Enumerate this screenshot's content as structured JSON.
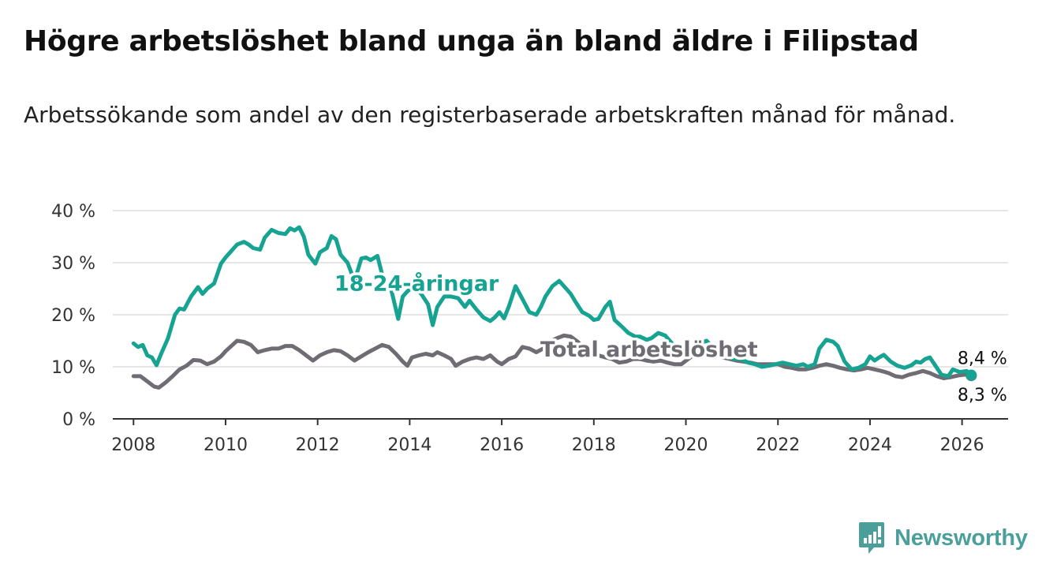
{
  "title": "Högre arbetslöshet bland unga än bland äldre i Filipstad",
  "subtitle": "Arbetssökande som andel av den registerbaserade arbetskraften månad för månad.",
  "brand": {
    "name": "Newsworthy",
    "icon": "chart-logo-icon",
    "color": "#4a9f9a"
  },
  "colors": {
    "youth": "#17a392",
    "total": "#6f6c73",
    "grid": "#dddddd",
    "axis": "#333333"
  },
  "chart_data": {
    "type": "line",
    "title": "Högre arbetslöshet bland unga än bland äldre i Filipstad",
    "xlabel": "",
    "ylabel": "",
    "xlim": [
      2007.55,
      2027.0
    ],
    "ylim": [
      0,
      40
    ],
    "yticks": [
      0,
      10,
      20,
      30,
      40
    ],
    "ytick_labels": [
      "0 %",
      "10 %",
      "20 %",
      "30 %",
      "40 %"
    ],
    "xticks": [
      2008,
      2010,
      2012,
      2014,
      2016,
      2018,
      2020,
      2022,
      2024,
      2026
    ],
    "xtick_labels": [
      "2008",
      "2010",
      "2012",
      "2014",
      "2016",
      "2018",
      "2020",
      "2022",
      "2024",
      "2026"
    ],
    "grid": true,
    "series": [
      {
        "name": "18-24-åringar",
        "color": "#17a392",
        "end_label": "8,4 %",
        "points": [
          [
            2008.0,
            14.5
          ],
          [
            2008.1,
            13.8
          ],
          [
            2008.2,
            14.2
          ],
          [
            2008.3,
            12.2
          ],
          [
            2008.4,
            11.8
          ],
          [
            2008.5,
            10.3
          ],
          [
            2008.6,
            12.5
          ],
          [
            2008.75,
            15.5
          ],
          [
            2008.9,
            20.0
          ],
          [
            2009.0,
            21.2
          ],
          [
            2009.1,
            21.0
          ],
          [
            2009.25,
            23.5
          ],
          [
            2009.4,
            25.3
          ],
          [
            2009.5,
            24.0
          ],
          [
            2009.6,
            25.0
          ],
          [
            2009.75,
            26.0
          ],
          [
            2009.9,
            29.8
          ],
          [
            2010.0,
            31.0
          ],
          [
            2010.1,
            32.0
          ],
          [
            2010.25,
            33.5
          ],
          [
            2010.4,
            34.0
          ],
          [
            2010.5,
            33.5
          ],
          [
            2010.6,
            32.8
          ],
          [
            2010.75,
            32.5
          ],
          [
            2010.85,
            34.8
          ],
          [
            2011.0,
            36.3
          ],
          [
            2011.15,
            35.7
          ],
          [
            2011.3,
            35.5
          ],
          [
            2011.4,
            36.6
          ],
          [
            2011.5,
            36.2
          ],
          [
            2011.6,
            36.8
          ],
          [
            2011.7,
            35.0
          ],
          [
            2011.8,
            31.5
          ],
          [
            2011.95,
            29.8
          ],
          [
            2012.05,
            32.0
          ],
          [
            2012.2,
            32.8
          ],
          [
            2012.3,
            35.1
          ],
          [
            2012.4,
            34.5
          ],
          [
            2012.5,
            31.5
          ],
          [
            2012.65,
            30.0
          ],
          [
            2012.8,
            26.5
          ],
          [
            2012.95,
            30.8
          ],
          [
            2013.05,
            31.0
          ],
          [
            2013.15,
            30.5
          ],
          [
            2013.3,
            31.3
          ],
          [
            2013.45,
            26.0
          ],
          [
            2013.6,
            24.8
          ],
          [
            2013.75,
            19.2
          ],
          [
            2013.85,
            23.5
          ],
          [
            2013.95,
            24.5
          ],
          [
            2014.1,
            25.5
          ],
          [
            2014.25,
            24.0
          ],
          [
            2014.4,
            22.0
          ],
          [
            2014.5,
            18.0
          ],
          [
            2014.6,
            21.5
          ],
          [
            2014.75,
            23.5
          ],
          [
            2014.9,
            23.5
          ],
          [
            2015.05,
            23.2
          ],
          [
            2015.2,
            21.5
          ],
          [
            2015.3,
            22.7
          ],
          [
            2015.45,
            21.0
          ],
          [
            2015.6,
            19.5
          ],
          [
            2015.75,
            18.8
          ],
          [
            2015.85,
            19.5
          ],
          [
            2015.95,
            20.5
          ],
          [
            2016.05,
            19.3
          ],
          [
            2016.15,
            21.5
          ],
          [
            2016.3,
            25.5
          ],
          [
            2016.45,
            23.0
          ],
          [
            2016.6,
            20.5
          ],
          [
            2016.75,
            20.0
          ],
          [
            2016.85,
            21.5
          ],
          [
            2016.95,
            23.5
          ],
          [
            2017.1,
            25.5
          ],
          [
            2017.25,
            26.5
          ],
          [
            2017.4,
            25.0
          ],
          [
            2017.5,
            24.0
          ],
          [
            2017.6,
            22.5
          ],
          [
            2017.75,
            20.5
          ],
          [
            2017.9,
            19.8
          ],
          [
            2018.0,
            19.0
          ],
          [
            2018.1,
            19.2
          ],
          [
            2018.25,
            21.5
          ],
          [
            2018.35,
            22.5
          ],
          [
            2018.45,
            19.0
          ],
          [
            2018.6,
            17.8
          ],
          [
            2018.75,
            16.5
          ],
          [
            2018.9,
            15.8
          ],
          [
            2019.0,
            15.8
          ],
          [
            2019.15,
            15.2
          ],
          [
            2019.25,
            15.5
          ],
          [
            2019.4,
            16.5
          ],
          [
            2019.55,
            16.0
          ],
          [
            2019.7,
            14.5
          ],
          [
            2019.85,
            12.5
          ],
          [
            2020.0,
            12.0
          ],
          [
            2020.15,
            13.0
          ],
          [
            2020.3,
            14.5
          ],
          [
            2020.45,
            15.0
          ],
          [
            2020.6,
            13.5
          ],
          [
            2020.75,
            12.5
          ],
          [
            2020.9,
            12.0
          ],
          [
            2021.05,
            11.5
          ],
          [
            2021.2,
            11.5
          ],
          [
            2021.35,
            10.8
          ],
          [
            2021.5,
            10.5
          ],
          [
            2021.65,
            10.0
          ],
          [
            2021.8,
            10.2
          ],
          [
            2021.95,
            10.5
          ],
          [
            2022.1,
            10.8
          ],
          [
            2022.25,
            10.5
          ],
          [
            2022.4,
            10.2
          ],
          [
            2022.55,
            10.5
          ],
          [
            2022.65,
            10.0
          ],
          [
            2022.8,
            10.5
          ],
          [
            2022.9,
            13.5
          ],
          [
            2023.05,
            15.2
          ],
          [
            2023.2,
            14.8
          ],
          [
            2023.3,
            14.0
          ],
          [
            2023.45,
            11.0
          ],
          [
            2023.6,
            9.5
          ],
          [
            2023.75,
            9.8
          ],
          [
            2023.9,
            10.5
          ],
          [
            2024.0,
            12.0
          ],
          [
            2024.1,
            11.2
          ],
          [
            2024.2,
            11.8
          ],
          [
            2024.3,
            12.3
          ],
          [
            2024.45,
            11.0
          ],
          [
            2024.6,
            10.2
          ],
          [
            2024.75,
            9.8
          ],
          [
            2024.9,
            10.3
          ],
          [
            2025.0,
            11.0
          ],
          [
            2025.1,
            10.8
          ],
          [
            2025.2,
            11.5
          ],
          [
            2025.3,
            11.8
          ],
          [
            2025.4,
            10.5
          ],
          [
            2025.55,
            8.5
          ],
          [
            2025.7,
            8.2
          ],
          [
            2025.8,
            9.5
          ],
          [
            2025.95,
            9.0
          ],
          [
            2026.1,
            9.2
          ],
          [
            2026.2,
            8.4
          ]
        ]
      },
      {
        "name": "Total arbetslöshet",
        "color": "#6f6c73",
        "end_label": "8,3 %",
        "points": [
          [
            2008.0,
            8.2
          ],
          [
            2008.15,
            8.2
          ],
          [
            2008.3,
            7.2
          ],
          [
            2008.45,
            6.2
          ],
          [
            2008.55,
            6.0
          ],
          [
            2008.7,
            7.0
          ],
          [
            2008.85,
            8.2
          ],
          [
            2009.0,
            9.5
          ],
          [
            2009.15,
            10.2
          ],
          [
            2009.3,
            11.3
          ],
          [
            2009.45,
            11.2
          ],
          [
            2009.6,
            10.5
          ],
          [
            2009.75,
            11.0
          ],
          [
            2009.9,
            12.0
          ],
          [
            2010.0,
            13.0
          ],
          [
            2010.15,
            14.2
          ],
          [
            2010.25,
            15.0
          ],
          [
            2010.4,
            14.8
          ],
          [
            2010.55,
            14.2
          ],
          [
            2010.7,
            12.8
          ],
          [
            2010.85,
            13.2
          ],
          [
            2011.0,
            13.5
          ],
          [
            2011.15,
            13.5
          ],
          [
            2011.3,
            14.0
          ],
          [
            2011.45,
            14.0
          ],
          [
            2011.6,
            13.2
          ],
          [
            2011.75,
            12.2
          ],
          [
            2011.9,
            11.2
          ],
          [
            2012.05,
            12.2
          ],
          [
            2012.2,
            12.8
          ],
          [
            2012.35,
            13.2
          ],
          [
            2012.5,
            13.0
          ],
          [
            2012.65,
            12.2
          ],
          [
            2012.8,
            11.2
          ],
          [
            2012.95,
            12.0
          ],
          [
            2013.1,
            12.8
          ],
          [
            2013.25,
            13.5
          ],
          [
            2013.4,
            14.2
          ],
          [
            2013.55,
            13.8
          ],
          [
            2013.7,
            12.5
          ],
          [
            2013.85,
            11.0
          ],
          [
            2013.95,
            10.2
          ],
          [
            2014.05,
            11.8
          ],
          [
            2014.2,
            12.2
          ],
          [
            2014.35,
            12.5
          ],
          [
            2014.5,
            12.2
          ],
          [
            2014.6,
            12.8
          ],
          [
            2014.75,
            12.2
          ],
          [
            2014.9,
            11.5
          ],
          [
            2015.0,
            10.2
          ],
          [
            2015.15,
            11.0
          ],
          [
            2015.3,
            11.5
          ],
          [
            2015.45,
            11.8
          ],
          [
            2015.6,
            11.5
          ],
          [
            2015.75,
            12.2
          ],
          [
            2015.9,
            11.0
          ],
          [
            2016.0,
            10.5
          ],
          [
            2016.15,
            11.5
          ],
          [
            2016.3,
            12.0
          ],
          [
            2016.45,
            13.8
          ],
          [
            2016.6,
            13.5
          ],
          [
            2016.75,
            12.8
          ],
          [
            2016.9,
            13.5
          ],
          [
            2017.05,
            14.8
          ],
          [
            2017.2,
            15.5
          ],
          [
            2017.35,
            16.0
          ],
          [
            2017.5,
            15.8
          ],
          [
            2017.65,
            14.8
          ],
          [
            2017.8,
            13.5
          ],
          [
            2017.95,
            12.8
          ],
          [
            2018.1,
            12.2
          ],
          [
            2018.25,
            11.8
          ],
          [
            2018.4,
            11.5
          ],
          [
            2018.55,
            10.8
          ],
          [
            2018.7,
            11.0
          ],
          [
            2018.85,
            11.5
          ],
          [
            2019.0,
            11.5
          ],
          [
            2019.15,
            11.2
          ],
          [
            2019.3,
            11.0
          ],
          [
            2019.45,
            11.2
          ],
          [
            2019.6,
            10.8
          ],
          [
            2019.75,
            10.5
          ],
          [
            2019.9,
            10.5
          ],
          [
            2020.05,
            11.5
          ],
          [
            2020.2,
            12.5
          ],
          [
            2020.35,
            12.8
          ],
          [
            2020.5,
            12.5
          ],
          [
            2020.65,
            12.2
          ],
          [
            2020.8,
            11.8
          ],
          [
            2020.95,
            11.5
          ],
          [
            2021.1,
            11.2
          ],
          [
            2021.25,
            11.0
          ],
          [
            2021.4,
            10.8
          ],
          [
            2021.55,
            10.5
          ],
          [
            2021.7,
            10.5
          ],
          [
            2021.85,
            10.5
          ],
          [
            2022.0,
            10.5
          ],
          [
            2022.15,
            10.0
          ],
          [
            2022.3,
            9.8
          ],
          [
            2022.45,
            9.5
          ],
          [
            2022.6,
            9.5
          ],
          [
            2022.75,
            9.8
          ],
          [
            2022.9,
            10.2
          ],
          [
            2023.05,
            10.5
          ],
          [
            2023.2,
            10.2
          ],
          [
            2023.35,
            9.8
          ],
          [
            2023.5,
            9.5
          ],
          [
            2023.65,
            9.3
          ],
          [
            2023.8,
            9.5
          ],
          [
            2023.95,
            9.8
          ],
          [
            2024.1,
            9.5
          ],
          [
            2024.25,
            9.2
          ],
          [
            2024.4,
            8.8
          ],
          [
            2024.55,
            8.2
          ],
          [
            2024.7,
            8.0
          ],
          [
            2024.85,
            8.5
          ],
          [
            2025.0,
            8.8
          ],
          [
            2025.15,
            9.2
          ],
          [
            2025.3,
            8.8
          ],
          [
            2025.45,
            8.2
          ],
          [
            2025.6,
            7.8
          ],
          [
            2025.75,
            8.0
          ],
          [
            2025.9,
            8.3
          ],
          [
            2026.05,
            8.5
          ],
          [
            2026.2,
            8.3
          ]
        ]
      }
    ],
    "annotations": [
      {
        "text": "18-24-åringar",
        "series": "18-24-åringar",
        "anchor": [
          2014.15,
          26.0
        ]
      },
      {
        "text": "Total arbetslöshet",
        "series": "Total arbetslöshet",
        "anchor": [
          2019.2,
          13.3
        ]
      }
    ]
  }
}
